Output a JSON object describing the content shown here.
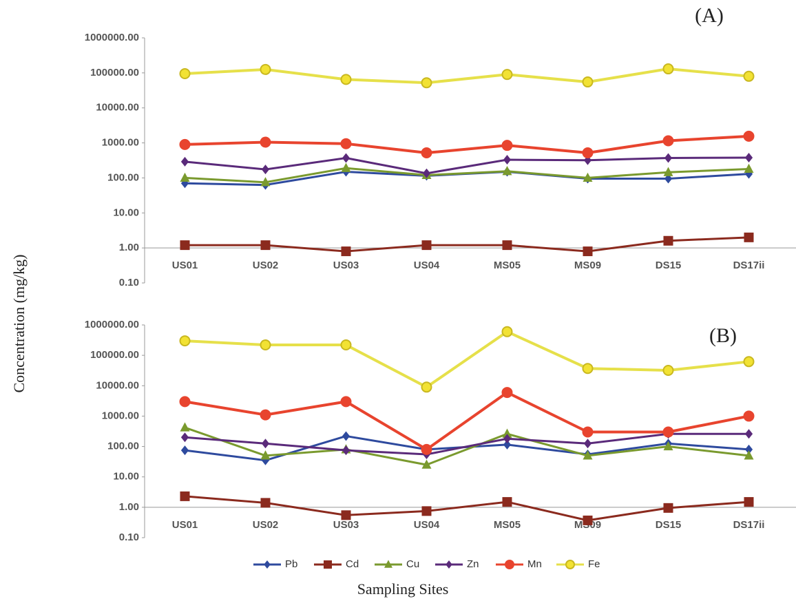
{
  "chart_data": [
    {
      "type": "line",
      "label": "(A)",
      "yscale": "log",
      "categories": [
        "US01",
        "US02",
        "US03",
        "US04",
        "MS05",
        "MS09",
        "DS15",
        "DS17ii"
      ],
      "ylim": [
        0.1,
        1000000
      ],
      "yticks": [
        {
          "value": 0.1,
          "label": "0.10"
        },
        {
          "value": 1,
          "label": "1.00"
        },
        {
          "value": 10,
          "label": "10.00"
        },
        {
          "value": 100,
          "label": "100.00"
        },
        {
          "value": 1000,
          "label": "1000.00"
        },
        {
          "value": 10000,
          "label": "10000.00"
        },
        {
          "value": 100000,
          "label": "100000.00"
        },
        {
          "value": 1000000,
          "label": "1000000.00"
        }
      ],
      "series": [
        {
          "color": "#2e4a9e",
          "marker": "diamond",
          "values": [
            70,
            63,
            150,
            115,
            150,
            95,
            95,
            130
          ]
        },
        {
          "color": "#8b2a1e",
          "marker": "square",
          "values": [
            1.2,
            1.2,
            0.8,
            1.2,
            1.2,
            0.8,
            1.6,
            2.0
          ]
        },
        {
          "color": "#7a9a2e",
          "marker": "triangle",
          "values": [
            100,
            75,
            190,
            120,
            155,
            100,
            145,
            180
          ]
        },
        {
          "color": "#5a2a7a",
          "marker": "diamond",
          "values": [
            290,
            175,
            370,
            135,
            330,
            320,
            370,
            380
          ]
        },
        {
          "color": "#e8442e",
          "marker": "circle",
          "values": [
            900,
            1050,
            950,
            520,
            850,
            520,
            1150,
            1550
          ]
        },
        {
          "color": "#e6e04a",
          "marker": "circle",
          "values": [
            95000,
            125000,
            65000,
            52000,
            90000,
            55000,
            130000,
            80000
          ]
        }
      ]
    },
    {
      "type": "line",
      "label": "(B)",
      "yscale": "log",
      "categories": [
        "US01",
        "US02",
        "US03",
        "US04",
        "MS05",
        "MS09",
        "DS15",
        "DS17ii"
      ],
      "ylim": [
        0.1,
        1000000
      ],
      "yticks": [
        {
          "value": 0.1,
          "label": "0.10"
        },
        {
          "value": 1,
          "label": "1.00"
        },
        {
          "value": 10,
          "label": "10.00"
        },
        {
          "value": 100,
          "label": "100.00"
        },
        {
          "value": 1000,
          "label": "1000.00"
        },
        {
          "value": 10000,
          "label": "10000.00"
        },
        {
          "value": 100000,
          "label": "100000.00"
        },
        {
          "value": 1000000,
          "label": "1000000.00"
        }
      ],
      "series": [
        {
          "name": "Pb",
          "color": "#2e4a9e",
          "marker": "diamond",
          "values": [
            75,
            35,
            220,
            80,
            115,
            55,
            125,
            80
          ]
        },
        {
          "name": "Cd",
          "color": "#8b2a1e",
          "marker": "square",
          "values": [
            2.3,
            1.4,
            0.55,
            0.75,
            1.5,
            0.37,
            0.95,
            1.5
          ]
        },
        {
          "name": "Cu",
          "color": "#7a9a2e",
          "marker": "triangle",
          "values": [
            420,
            50,
            80,
            25,
            260,
            50,
            100,
            50
          ]
        },
        {
          "name": "Zn",
          "color": "#5a2a7a",
          "marker": "diamond",
          "values": [
            200,
            125,
            75,
            55,
            180,
            125,
            260,
            260
          ]
        },
        {
          "name": "Mn",
          "color": "#e8442e",
          "marker": "circle",
          "values": [
            3000,
            1100,
            3000,
            80,
            6000,
            300,
            300,
            1000
          ]
        },
        {
          "name": "Fe",
          "color": "#e6e04a",
          "marker": "circle",
          "values": [
            300000,
            220000,
            220000,
            9000,
            600000,
            37000,
            32000,
            62000
          ]
        }
      ]
    }
  ],
  "y_label": "Concentration (mg/kg)",
  "x_label": "Sampling Sites"
}
